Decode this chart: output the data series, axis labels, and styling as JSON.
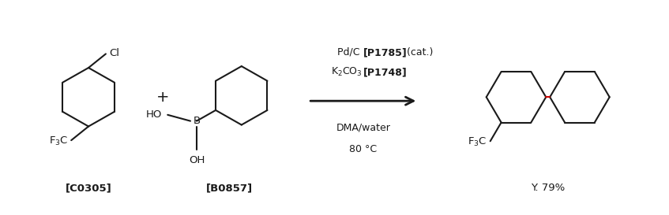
{
  "background_color": "#ffffff",
  "fig_width": 8.47,
  "fig_height": 2.73,
  "dpi": 100,
  "label1": "[C0305]",
  "label2": "[B0857]",
  "label3": "Y. 79%",
  "bond_color": "#1a1a1a",
  "highlight_bond_color": "#cc0000",
  "text_color": "#1a1a1a",
  "r1a": "Pd/C ",
  "r1b": "[P1785]",
  "r1c": " (cat.)",
  "r2a": "K",
  "r2b": "₂",
  "r2c": "CO",
  "r2d": "₃",
  "r2e": " [P1748]",
  "r3": "DMA/water",
  "r4": "80 °C"
}
